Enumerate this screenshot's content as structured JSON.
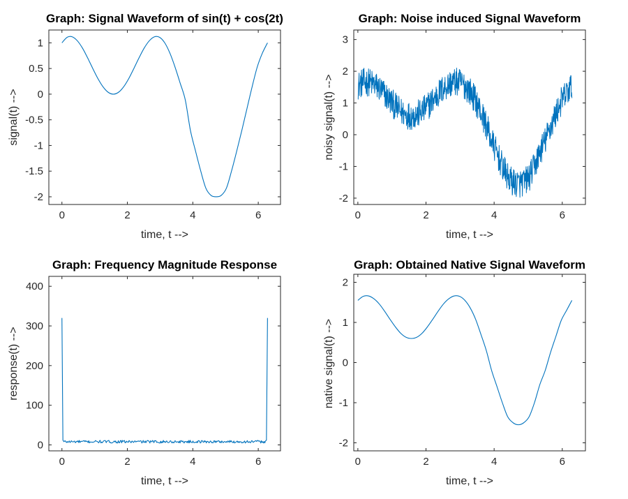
{
  "figure": {
    "background": "#ffffff"
  },
  "chart_data": [
    {
      "id": "ax1",
      "type": "line",
      "title": "Graph: Signal Waveform of sin(t) + cos(2t)",
      "xlabel": "time, t -->",
      "ylabel": "signal(t) -->",
      "xlim": [
        -0.4,
        6.68
      ],
      "ylim": [
        -2.15,
        1.25
      ],
      "xticks": [
        0,
        2,
        4,
        6
      ],
      "xtick_labels": [
        "0",
        "2",
        "4",
        "6"
      ],
      "yticks": [
        -2,
        -1.5,
        -1,
        -0.5,
        0,
        0.5,
        1
      ],
      "ytick_labels": [
        "-2",
        "-1.5",
        "-1",
        "-0.5",
        "0",
        "0.5",
        "1"
      ],
      "color": "#0072BD",
      "series": [
        {
          "x": [
            0,
            0.157,
            0.314,
            0.471,
            0.628,
            0.785,
            0.942,
            1.1,
            1.257,
            1.414,
            1.571,
            1.728,
            1.885,
            2.042,
            2.199,
            2.356,
            2.513,
            2.67,
            2.827,
            2.985,
            3.142,
            3.299,
            3.456,
            3.613,
            3.77,
            3.927,
            4.084,
            4.241,
            4.398,
            4.555,
            4.712,
            4.869,
            5.027,
            5.184,
            5.341,
            5.498,
            5.655,
            5.812,
            5.969,
            6.126,
            6.283
          ],
          "y": [
            1.0,
            1.107,
            1.118,
            1.04,
            0.897,
            0.707,
            0.501,
            0.303,
            0.142,
            0.036,
            0.0,
            0.036,
            0.142,
            0.303,
            0.501,
            0.707,
            0.897,
            1.04,
            1.118,
            1.107,
            1.0,
            0.8,
            0.529,
            0.215,
            -0.113,
            -0.707,
            -1.111,
            -1.496,
            -1.831,
            -1.972,
            -2.0,
            -1.972,
            -1.831,
            -1.496,
            -1.111,
            -0.707,
            -0.281,
            0.142,
            0.529,
            0.8,
            1.0
          ]
        }
      ]
    },
    {
      "id": "ax2",
      "type": "line",
      "title": "Graph: Noise induced Signal Waveform",
      "xlabel": "time, t -->",
      "ylabel": "noisy signal(t) -->",
      "xlim": [
        -0.12,
        6.68
      ],
      "ylim": [
        -2.2,
        3.3
      ],
      "xticks": [
        0,
        2,
        4,
        6
      ],
      "xtick_labels": [
        "0",
        "2",
        "4",
        "6"
      ],
      "yticks": [
        -2,
        -1,
        0,
        1,
        2,
        3
      ],
      "ytick_labels": [
        "-2",
        "-1",
        "0",
        "1",
        "2",
        "3"
      ],
      "color": "#0072BD",
      "series": [
        {
          "x": [
            0,
            0.157,
            0.314,
            0.471,
            0.628,
            0.785,
            0.942,
            1.1,
            1.257,
            1.414,
            1.571,
            1.728,
            1.885,
            2.042,
            2.199,
            2.356,
            2.513,
            2.67,
            2.827,
            2.985,
            3.142,
            3.299,
            3.456,
            3.613,
            3.77,
            3.927,
            4.084,
            4.241,
            4.398,
            4.555,
            4.712,
            4.869,
            5.027,
            5.184,
            5.341,
            5.498,
            5.655,
            5.812,
            5.969,
            6.126,
            6.283
          ],
          "y": [
            1.55,
            1.65,
            1.66,
            1.59,
            1.46,
            1.28,
            1.08,
            0.89,
            0.73,
            0.63,
            0.6,
            0.63,
            0.73,
            0.89,
            1.08,
            1.28,
            1.46,
            1.59,
            1.66,
            1.65,
            1.55,
            1.36,
            1.08,
            0.7,
            0.3,
            -0.2,
            -0.6,
            -1.0,
            -1.35,
            -1.5,
            -1.55,
            -1.5,
            -1.35,
            -1.0,
            -0.55,
            -0.2,
            0.25,
            0.65,
            1.05,
            1.3,
            1.55
          ]
        }
      ]
    },
    {
      "id": "ax3",
      "type": "line",
      "title": "Graph: Frequency Magnitude Response",
      "xlabel": "time, t -->",
      "ylabel": "response(t) -->",
      "xlim": [
        -0.4,
        6.68
      ],
      "ylim": [
        -15,
        425
      ],
      "xticks": [
        0,
        2,
        4,
        6
      ],
      "xtick_labels": [
        "0",
        "2",
        "4",
        "6"
      ],
      "yticks": [
        0,
        100,
        200,
        300,
        400
      ],
      "ytick_labels": [
        "0",
        "100",
        "200",
        "300",
        "400"
      ],
      "color": "#0072BD",
      "series": [
        {
          "x": [
            0,
            0.03,
            0.06,
            0.3,
            0.6,
            0.9,
            1.2,
            1.5,
            1.8,
            2.1,
            2.4,
            2.7,
            3.0,
            3.3,
            3.6,
            3.9,
            4.2,
            4.5,
            4.8,
            5.1,
            5.4,
            5.7,
            6.0,
            6.22,
            6.25,
            6.283
          ],
          "y": [
            320,
            12,
            7,
            8,
            10,
            7,
            9,
            8,
            11,
            7,
            9,
            8,
            10,
            7,
            9,
            8,
            10,
            8,
            9,
            7,
            10,
            8,
            9,
            7,
            12,
            320
          ]
        }
      ]
    },
    {
      "id": "ax4",
      "type": "line",
      "title": "Graph: Obtained Native Signal Waveform",
      "xlabel": "time, t -->",
      "ylabel": "native signal(t) -->",
      "xlim": [
        -0.12,
        6.68
      ],
      "ylim": [
        -2.2,
        2.2
      ],
      "xticks": [
        0,
        2,
        4,
        6
      ],
      "xtick_labels": [
        "0",
        "2",
        "4",
        "6"
      ],
      "yticks": [
        -2,
        -1,
        0,
        1,
        2
      ],
      "ytick_labels": [
        "-2",
        "-1",
        "0",
        "1",
        "2"
      ],
      "color": "#0072BD",
      "series": [
        {
          "x": [
            0,
            0.157,
            0.314,
            0.471,
            0.628,
            0.785,
            0.942,
            1.1,
            1.257,
            1.414,
            1.571,
            1.728,
            1.885,
            2.042,
            2.199,
            2.356,
            2.513,
            2.67,
            2.827,
            2.985,
            3.142,
            3.299,
            3.456,
            3.613,
            3.77,
            3.927,
            4.084,
            4.241,
            4.398,
            4.555,
            4.712,
            4.869,
            5.027,
            5.184,
            5.341,
            5.498,
            5.655,
            5.812,
            5.969,
            6.126,
            6.283
          ],
          "y": [
            1.55,
            1.65,
            1.66,
            1.59,
            1.46,
            1.28,
            1.08,
            0.89,
            0.73,
            0.63,
            0.6,
            0.63,
            0.73,
            0.89,
            1.08,
            1.28,
            1.46,
            1.59,
            1.66,
            1.65,
            1.55,
            1.36,
            1.08,
            0.7,
            0.3,
            -0.2,
            -0.6,
            -1.0,
            -1.35,
            -1.5,
            -1.55,
            -1.5,
            -1.35,
            -1.0,
            -0.55,
            -0.2,
            0.25,
            0.65,
            1.05,
            1.3,
            1.55
          ]
        }
      ]
    }
  ]
}
